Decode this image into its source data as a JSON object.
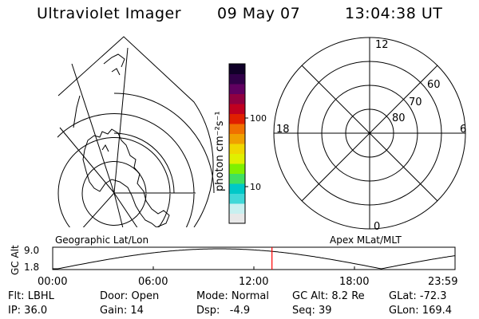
{
  "header": {
    "instrument": "Ultraviolet Imager",
    "date": "09 May 07",
    "time": "13:04:38 UT"
  },
  "colorbar": {
    "unit_label": "photon cm⁻²s⁻¹",
    "ticks": [
      {
        "label": "100",
        "value": 100
      },
      {
        "label": "10",
        "value": 10
      }
    ],
    "colors": [
      "#e8e8e8",
      "#c8f0f0",
      "#40d8d8",
      "#00c8c8",
      "#40e060",
      "#80f000",
      "#e0f000",
      "#f0d800",
      "#f0a000",
      "#f07000",
      "#e02000",
      "#c00020",
      "#900040",
      "#600060",
      "#300048",
      "#100028"
    ]
  },
  "geo_plot": {
    "label": "Geographic Lat/Lon"
  },
  "apex_plot": {
    "label": "Apex MLat/MLT",
    "mlt_labels": {
      "top": "12",
      "bottom": "0",
      "left": "18",
      "right": "6"
    },
    "lat_labels": [
      "60",
      "70",
      "80"
    ]
  },
  "altitude_strip": {
    "axis_label": "GC Alt",
    "y_ticks": [
      "9.0",
      "1.8"
    ],
    "x_ticks": [
      "00:00",
      "06:00",
      "12:00",
      "18:00",
      "23:59"
    ],
    "marker_time_hours": 13.08,
    "marker_color": "#ff0000"
  },
  "status": {
    "filter": "Flt: LBHL",
    "ip": "IP: 36.0",
    "door": "Door: Open",
    "gain": "Gain: 14",
    "mode": "Mode: Normal",
    "dsp": "Dsp:   -4.9",
    "gc_alt": "GC Alt: 8.2 Re",
    "seq": "Seq: 39",
    "glat": "GLat: -72.3",
    "glon": "GLon: 169.4"
  }
}
